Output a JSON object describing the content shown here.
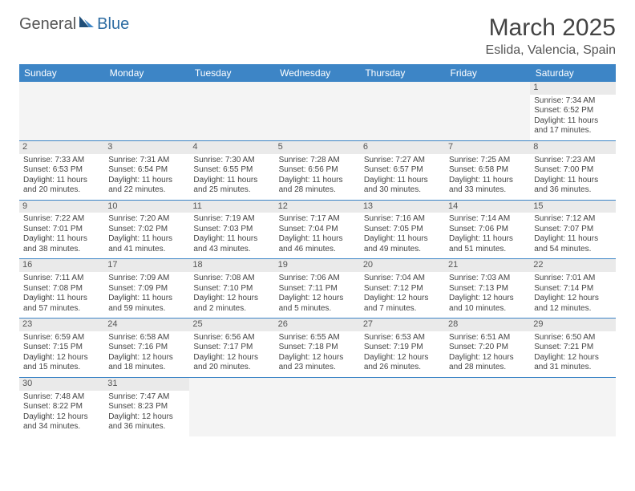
{
  "logo": {
    "text1": "General",
    "text2": "Blue"
  },
  "title": "March 2025",
  "location": "Eslida, Valencia, Spain",
  "colors": {
    "header_bg": "#3d85c6",
    "header_text": "#ffffff",
    "cell_border": "#3d85c6",
    "daynum_bg": "#eaeaea",
    "blank_bg": "#f4f4f4"
  },
  "weekdays": [
    "Sunday",
    "Monday",
    "Tuesday",
    "Wednesday",
    "Thursday",
    "Friday",
    "Saturday"
  ],
  "weeks": [
    [
      {
        "blank": true
      },
      {
        "blank": true
      },
      {
        "blank": true
      },
      {
        "blank": true
      },
      {
        "blank": true
      },
      {
        "blank": true
      },
      {
        "n": "1",
        "sr": "Sunrise: 7:34 AM",
        "ss": "Sunset: 6:52 PM",
        "dl": "Daylight: 11 hours and 17 minutes."
      }
    ],
    [
      {
        "n": "2",
        "sr": "Sunrise: 7:33 AM",
        "ss": "Sunset: 6:53 PM",
        "dl": "Daylight: 11 hours and 20 minutes."
      },
      {
        "n": "3",
        "sr": "Sunrise: 7:31 AM",
        "ss": "Sunset: 6:54 PM",
        "dl": "Daylight: 11 hours and 22 minutes."
      },
      {
        "n": "4",
        "sr": "Sunrise: 7:30 AM",
        "ss": "Sunset: 6:55 PM",
        "dl": "Daylight: 11 hours and 25 minutes."
      },
      {
        "n": "5",
        "sr": "Sunrise: 7:28 AM",
        "ss": "Sunset: 6:56 PM",
        "dl": "Daylight: 11 hours and 28 minutes."
      },
      {
        "n": "6",
        "sr": "Sunrise: 7:27 AM",
        "ss": "Sunset: 6:57 PM",
        "dl": "Daylight: 11 hours and 30 minutes."
      },
      {
        "n": "7",
        "sr": "Sunrise: 7:25 AM",
        "ss": "Sunset: 6:58 PM",
        "dl": "Daylight: 11 hours and 33 minutes."
      },
      {
        "n": "8",
        "sr": "Sunrise: 7:23 AM",
        "ss": "Sunset: 7:00 PM",
        "dl": "Daylight: 11 hours and 36 minutes."
      }
    ],
    [
      {
        "n": "9",
        "sr": "Sunrise: 7:22 AM",
        "ss": "Sunset: 7:01 PM",
        "dl": "Daylight: 11 hours and 38 minutes."
      },
      {
        "n": "10",
        "sr": "Sunrise: 7:20 AM",
        "ss": "Sunset: 7:02 PM",
        "dl": "Daylight: 11 hours and 41 minutes."
      },
      {
        "n": "11",
        "sr": "Sunrise: 7:19 AM",
        "ss": "Sunset: 7:03 PM",
        "dl": "Daylight: 11 hours and 43 minutes."
      },
      {
        "n": "12",
        "sr": "Sunrise: 7:17 AM",
        "ss": "Sunset: 7:04 PM",
        "dl": "Daylight: 11 hours and 46 minutes."
      },
      {
        "n": "13",
        "sr": "Sunrise: 7:16 AM",
        "ss": "Sunset: 7:05 PM",
        "dl": "Daylight: 11 hours and 49 minutes."
      },
      {
        "n": "14",
        "sr": "Sunrise: 7:14 AM",
        "ss": "Sunset: 7:06 PM",
        "dl": "Daylight: 11 hours and 51 minutes."
      },
      {
        "n": "15",
        "sr": "Sunrise: 7:12 AM",
        "ss": "Sunset: 7:07 PM",
        "dl": "Daylight: 11 hours and 54 minutes."
      }
    ],
    [
      {
        "n": "16",
        "sr": "Sunrise: 7:11 AM",
        "ss": "Sunset: 7:08 PM",
        "dl": "Daylight: 11 hours and 57 minutes."
      },
      {
        "n": "17",
        "sr": "Sunrise: 7:09 AM",
        "ss": "Sunset: 7:09 PM",
        "dl": "Daylight: 11 hours and 59 minutes."
      },
      {
        "n": "18",
        "sr": "Sunrise: 7:08 AM",
        "ss": "Sunset: 7:10 PM",
        "dl": "Daylight: 12 hours and 2 minutes."
      },
      {
        "n": "19",
        "sr": "Sunrise: 7:06 AM",
        "ss": "Sunset: 7:11 PM",
        "dl": "Daylight: 12 hours and 5 minutes."
      },
      {
        "n": "20",
        "sr": "Sunrise: 7:04 AM",
        "ss": "Sunset: 7:12 PM",
        "dl": "Daylight: 12 hours and 7 minutes."
      },
      {
        "n": "21",
        "sr": "Sunrise: 7:03 AM",
        "ss": "Sunset: 7:13 PM",
        "dl": "Daylight: 12 hours and 10 minutes."
      },
      {
        "n": "22",
        "sr": "Sunrise: 7:01 AM",
        "ss": "Sunset: 7:14 PM",
        "dl": "Daylight: 12 hours and 12 minutes."
      }
    ],
    [
      {
        "n": "23",
        "sr": "Sunrise: 6:59 AM",
        "ss": "Sunset: 7:15 PM",
        "dl": "Daylight: 12 hours and 15 minutes."
      },
      {
        "n": "24",
        "sr": "Sunrise: 6:58 AM",
        "ss": "Sunset: 7:16 PM",
        "dl": "Daylight: 12 hours and 18 minutes."
      },
      {
        "n": "25",
        "sr": "Sunrise: 6:56 AM",
        "ss": "Sunset: 7:17 PM",
        "dl": "Daylight: 12 hours and 20 minutes."
      },
      {
        "n": "26",
        "sr": "Sunrise: 6:55 AM",
        "ss": "Sunset: 7:18 PM",
        "dl": "Daylight: 12 hours and 23 minutes."
      },
      {
        "n": "27",
        "sr": "Sunrise: 6:53 AM",
        "ss": "Sunset: 7:19 PM",
        "dl": "Daylight: 12 hours and 26 minutes."
      },
      {
        "n": "28",
        "sr": "Sunrise: 6:51 AM",
        "ss": "Sunset: 7:20 PM",
        "dl": "Daylight: 12 hours and 28 minutes."
      },
      {
        "n": "29",
        "sr": "Sunrise: 6:50 AM",
        "ss": "Sunset: 7:21 PM",
        "dl": "Daylight: 12 hours and 31 minutes."
      }
    ],
    [
      {
        "n": "30",
        "sr": "Sunrise: 7:48 AM",
        "ss": "Sunset: 8:22 PM",
        "dl": "Daylight: 12 hours and 34 minutes."
      },
      {
        "n": "31",
        "sr": "Sunrise: 7:47 AM",
        "ss": "Sunset: 8:23 PM",
        "dl": "Daylight: 12 hours and 36 minutes."
      },
      {
        "blank": true
      },
      {
        "blank": true
      },
      {
        "blank": true
      },
      {
        "blank": true
      },
      {
        "blank": true
      }
    ]
  ]
}
